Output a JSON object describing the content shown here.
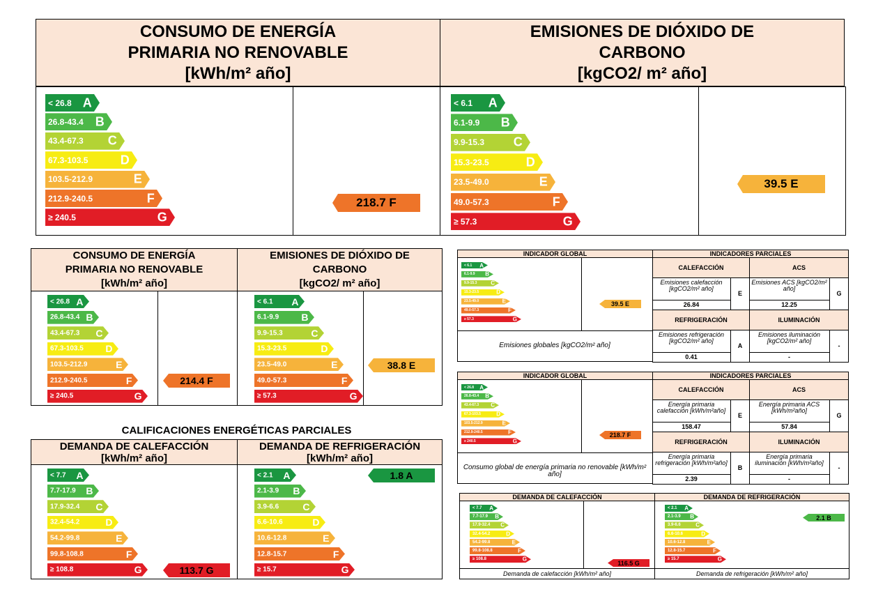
{
  "colors": {
    "A": "#1a9641",
    "B": "#4cb848",
    "C": "#b3d335",
    "D": "#f7ec13",
    "E": "#f6b33b",
    "F": "#ee7429",
    "G": "#e11d26",
    "header_bg": "#fbe5d6"
  },
  "top": {
    "energy": {
      "title_lines": [
        "CONSUMO DE ENERGÍA",
        "PRIMARIA NO RENOVABLE",
        "[kWh/m² año]"
      ],
      "ranges": [
        "< 26.8",
        "26.8-43.4",
        "43.4-67.3",
        "67.3-103.5",
        "103.5-212.9",
        "212.9-240.5",
        "≥ 240.5"
      ],
      "indicator": "218.7 F",
      "indicator_letter": "F"
    },
    "co2": {
      "title_lines": [
        "EMISIONES DE DIÓXIDO DE",
        "CARBONO",
        "[kgCO2/ m² año]"
      ],
      "ranges": [
        "< 6.1",
        "6.1-9.9",
        "9.9-15.3",
        "15.3-23.5",
        "23.5-49.0",
        "49.0-57.3",
        "≥ 57.3"
      ],
      "indicator": "39.5 E",
      "indicator_letter": "E"
    }
  },
  "mid": {
    "energy": {
      "title_lines": [
        "CONSUMO DE ENERGÍA",
        "PRIMARIA NO RENOVABLE",
        "[kWh/m² año]"
      ],
      "ranges": [
        "< 26.8",
        "26.8-43.4",
        "43.4-67.3",
        "67.3-103.5",
        "103.5-212.9",
        "212.9-240.5",
        "≥ 240.5"
      ],
      "indicator": "214.4 F",
      "indicator_letter": "F"
    },
    "co2": {
      "title_lines": [
        "EMISIONES DE DIÓXIDO DE",
        "CARBONO",
        "[kgCO2/ m² año]"
      ],
      "ranges": [
        "< 6.1",
        "6.1-9.9",
        "9.9-15.3",
        "15.3-23.5",
        "23.5-49.0",
        "49.0-57.3",
        "≥ 57.3"
      ],
      "indicator": "38.8 E",
      "indicator_letter": "E"
    }
  },
  "partial": {
    "title": "CALIFICACIONES ENERGÉTICAS PARCIALES",
    "heating": {
      "title_lines": [
        "DEMANDA DE CALEFACCIÓN",
        "[kWh/m² año]"
      ],
      "ranges": [
        "< 7.7",
        "7.7-17.9",
        "17.9-32.4",
        "32.4-54.2",
        "54.2-99.8",
        "99.8-108.8",
        "≥ 108.8"
      ],
      "indicator": "113.7 G",
      "indicator_letter": "G"
    },
    "cooling": {
      "title_lines": [
        "DEMANDA DE REFRIGERACIÓN",
        "[kWh/m² año]"
      ],
      "ranges": [
        "< 2.1",
        "2.1-3.9",
        "3.9-6.6",
        "6.6-10.6",
        "10.6-12.8",
        "12.8-15.7",
        "≥ 15.7"
      ],
      "indicator": "1.8 A",
      "indicator_letter": "A"
    }
  },
  "right_co2": {
    "global_header": "INDICADOR GLOBAL",
    "partial_header": "INDICADORES PARCIALES",
    "ranges": [
      "< 6.1",
      "6.1-9.9",
      "9.9-15.3",
      "15.3-23.5",
      "23.5-49.0",
      "49.0-57.3",
      "≥ 57.3"
    ],
    "indicator": "39.5 E",
    "indicator_letter": "E",
    "global_label": "Emisiones globales [kgCO2/m² año]",
    "heating_header": "CALEFACCIÓN",
    "acs_header": "ACS",
    "cooling_header": "REFRIGERACIÓN",
    "lighting_header": "ILUMINACIÓN",
    "heating_label": "Emisiones calefacción [kgCO2/m² año]",
    "heating_value": "26.84",
    "heating_letter": "E",
    "acs_label": "Emisiones ACS [kgCO2/m² año]",
    "acs_value": "12.25",
    "acs_letter": "G",
    "cooling_label": "Emisiones refrigeración [kgCO2/m² año]",
    "cooling_value": "0.41",
    "cooling_letter": "A",
    "lighting_label": "Emisiones iluminación [kgCO2/m² año]",
    "lighting_value": "-",
    "lighting_letter": "-"
  },
  "right_energy": {
    "global_header": "INDICADOR GLOBAL",
    "partial_header": "INDICADORES PARCIALES",
    "ranges": [
      "< 26.8",
      "26.8-43.4",
      "43.4-67.3",
      "67.3-103.5",
      "103.5-212.9",
      "212.9-240.5",
      "≥ 240.5"
    ],
    "indicator": "218.7 F",
    "indicator_letter": "F",
    "global_label": "Consumo global de energía primaria no renovable [kWh/m² año]",
    "heating_header": "CALEFACCIÓN",
    "acs_header": "ACS",
    "cooling_header": "REFRIGERACIÓN",
    "lighting_header": "ILUMINACIÓN",
    "heating_label": "Energía primaria calefacción [kWh/m²año]",
    "heating_value": "158.47",
    "heating_letter": "E",
    "acs_label": "Energía primaria ACS [kWh/m²año]",
    "acs_value": "57.84",
    "acs_letter": "G",
    "cooling_label": "Energía primaria refrigeración [kWh/m²año]",
    "cooling_value": "2.39",
    "cooling_letter": "B",
    "lighting_label": "Energía primaria iluminación [kWh/m²año]",
    "lighting_value": "-",
    "lighting_letter": "-"
  },
  "right_demand": {
    "heating_header": "DEMANDA DE CALEFACCIÓN",
    "cooling_header": "DEMANDA DE REFRIGERACIÓN",
    "heating_ranges": [
      "< 7.7",
      "7.7-17.9",
      "17.9-32.4",
      "32.4-54.2",
      "54.2-99.8",
      "99.8-108.8",
      "≥ 108.8"
    ],
    "cooling_ranges": [
      "< 2.1",
      "2.1-3.9",
      "3.9-6.6",
      "6.6-10.6",
      "10.6-12.8",
      "12.8-15.7",
      "≥ 15.7"
    ],
    "heating_indicator": "116.5 G",
    "heating_indicator_letter": "G",
    "cooling_indicator": "2.1 B",
    "cooling_indicator_letter": "B",
    "heating_label": "Demanda de calefacción [kWh/m² año]",
    "cooling_label": "Demanda de refrigeración [kWh/m² año]"
  },
  "letters": [
    "A",
    "B",
    "C",
    "D",
    "E",
    "F",
    "G"
  ]
}
